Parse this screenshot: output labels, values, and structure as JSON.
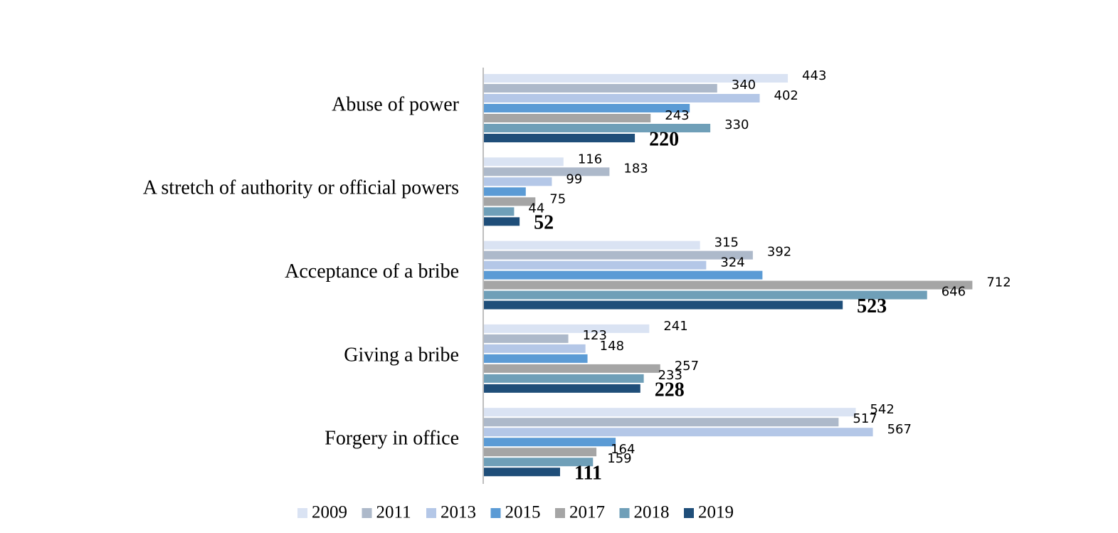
{
  "chart_data": {
    "type": "bar",
    "orientation": "horizontal",
    "categories": [
      "Abuse of power",
      "A stretch of authority or official powers",
      "Acceptance of a bribe",
      "Giving a bribe",
      "Forgery in office"
    ],
    "series": [
      {
        "name": "2009",
        "color": "#dae3f3",
        "values": [
          443,
          116,
          315,
          241,
          542
        ]
      },
      {
        "name": "2011",
        "color": "#adb9ca",
        "values": [
          340,
          183,
          392,
          123,
          517
        ]
      },
      {
        "name": "2013",
        "color": "#b4c7e7",
        "values": [
          402,
          99,
          324,
          148,
          567
        ]
      },
      {
        "name": "2015",
        "color": "#5b9bd5",
        "values": [
          300,
          61,
          406,
          151,
          192
        ],
        "show_labels": false
      },
      {
        "name": "2017",
        "color": "#a5a5a5",
        "values": [
          243,
          75,
          712,
          257,
          164
        ]
      },
      {
        "name": "2018",
        "color": "#6f9fb8",
        "values": [
          330,
          44,
          646,
          233,
          159
        ]
      },
      {
        "name": "2019",
        "color": "#1f4e79",
        "values": [
          220,
          52,
          523,
          228,
          111
        ],
        "label_bold": true
      }
    ],
    "legend": "bottom"
  }
}
